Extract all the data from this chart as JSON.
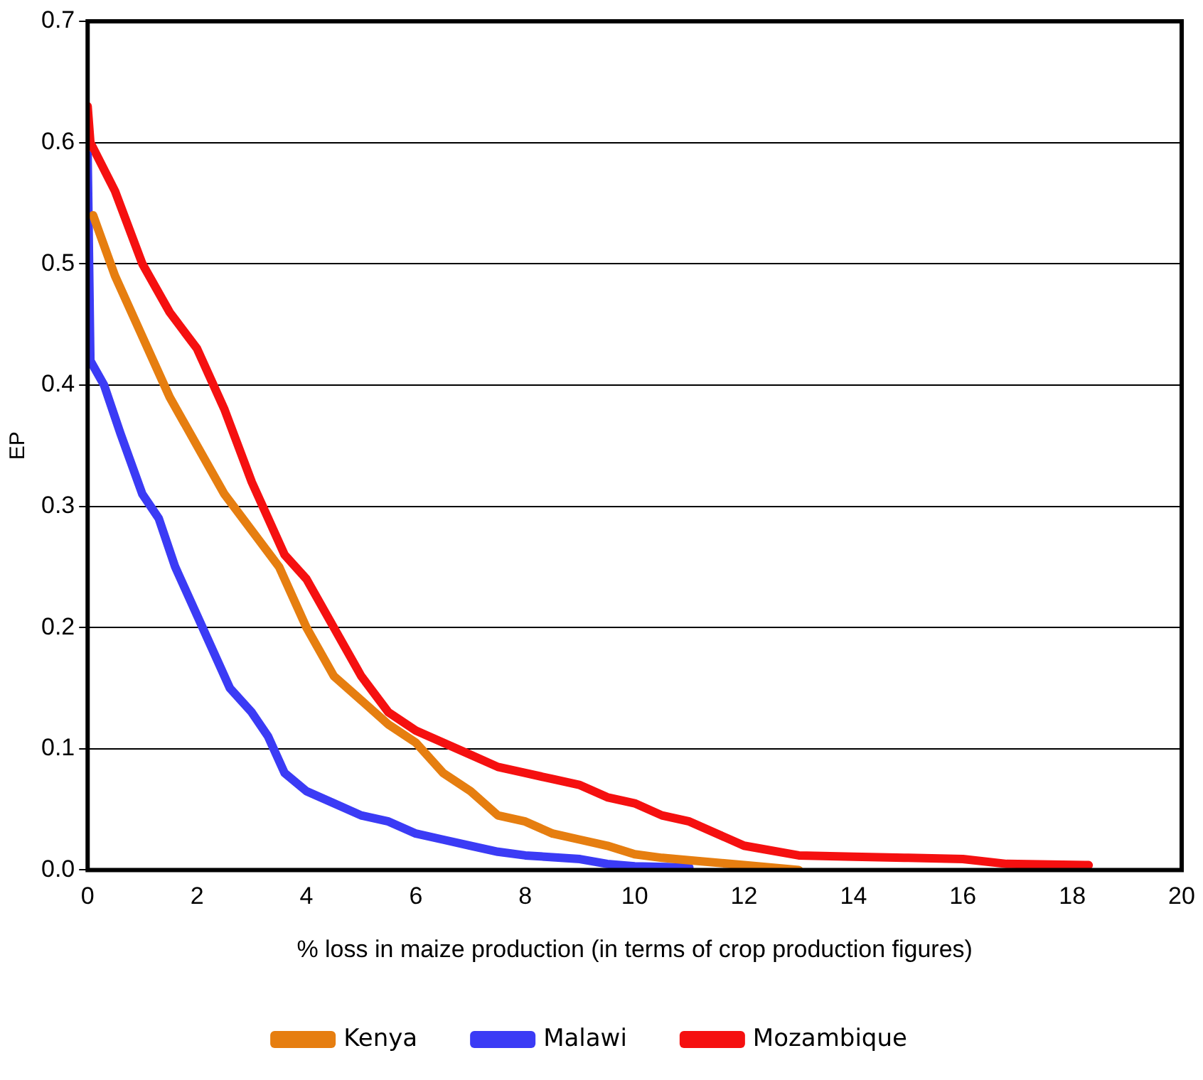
{
  "chart_data": {
    "type": "line",
    "xlabel": "% loss in maize production (in terms of crop production figures)",
    "ylabel": "EP",
    "xlim": [
      0,
      20
    ],
    "xticks": [
      0,
      2,
      4,
      6,
      8,
      10,
      12,
      14,
      16,
      18,
      20
    ],
    "ylim": [
      0,
      0.7
    ],
    "yticks": [
      {
        "value": 0,
        "label": "0.0"
      },
      0.1,
      0.2,
      0.3,
      0.4,
      0.5,
      0.6,
      0.7
    ],
    "grid": "y",
    "legend": "bottom",
    "marker": "none",
    "line_style": "solid",
    "series": [
      {
        "name": "Kenya",
        "color": "#e67e10",
        "x": [
          0.1,
          0.5,
          1,
          1.5,
          2,
          2.5,
          3,
          3.5,
          4,
          4.5,
          5,
          5.5,
          6,
          6.5,
          7,
          7.5,
          8,
          8.5,
          9,
          9.5,
          10,
          10.5,
          11,
          12,
          13
        ],
        "values": [
          0.54,
          0.49,
          0.44,
          0.39,
          0.35,
          0.31,
          0.28,
          0.25,
          0.2,
          0.16,
          0.14,
          0.12,
          0.105,
          0.08,
          0.065,
          0.045,
          0.04,
          0.03,
          0.025,
          0.02,
          0.013,
          0.01,
          0.008,
          0.004,
          0
        ]
      },
      {
        "name": "Malawi",
        "color": "#3b3bf5",
        "x": [
          0,
          0.05,
          0.3,
          0.6,
          1,
          1.3,
          1.6,
          2,
          2.3,
          2.6,
          3,
          3.3,
          3.6,
          4,
          4.5,
          5,
          5.5,
          6,
          6.5,
          7,
          7.5,
          8,
          9,
          9.5,
          10,
          11
        ],
        "values": [
          0.59,
          0.42,
          0.4,
          0.36,
          0.31,
          0.29,
          0.25,
          0.21,
          0.18,
          0.15,
          0.13,
          0.11,
          0.08,
          0.065,
          0.055,
          0.045,
          0.04,
          0.03,
          0.025,
          0.02,
          0.015,
          0.012,
          0.009,
          0.005,
          0.003,
          0.002
        ]
      },
      {
        "name": "Mozambique",
        "color": "#f51010",
        "x": [
          0,
          0.05,
          0.5,
          1,
          1.5,
          2,
          2.5,
          3,
          3.3,
          3.6,
          4,
          4.5,
          5,
          5.5,
          6,
          6.5,
          7,
          7.5,
          8,
          8.5,
          9,
          9.5,
          10,
          10.5,
          11,
          11.5,
          12,
          13,
          14,
          15,
          16,
          16.8,
          18.3
        ],
        "values": [
          0.63,
          0.6,
          0.56,
          0.5,
          0.46,
          0.43,
          0.38,
          0.32,
          0.29,
          0.26,
          0.24,
          0.2,
          0.16,
          0.13,
          0.115,
          0.105,
          0.095,
          0.085,
          0.08,
          0.075,
          0.07,
          0.06,
          0.055,
          0.045,
          0.04,
          0.03,
          0.02,
          0.012,
          0.011,
          0.01,
          0.009,
          0.005,
          0.004
        ]
      }
    ]
  }
}
